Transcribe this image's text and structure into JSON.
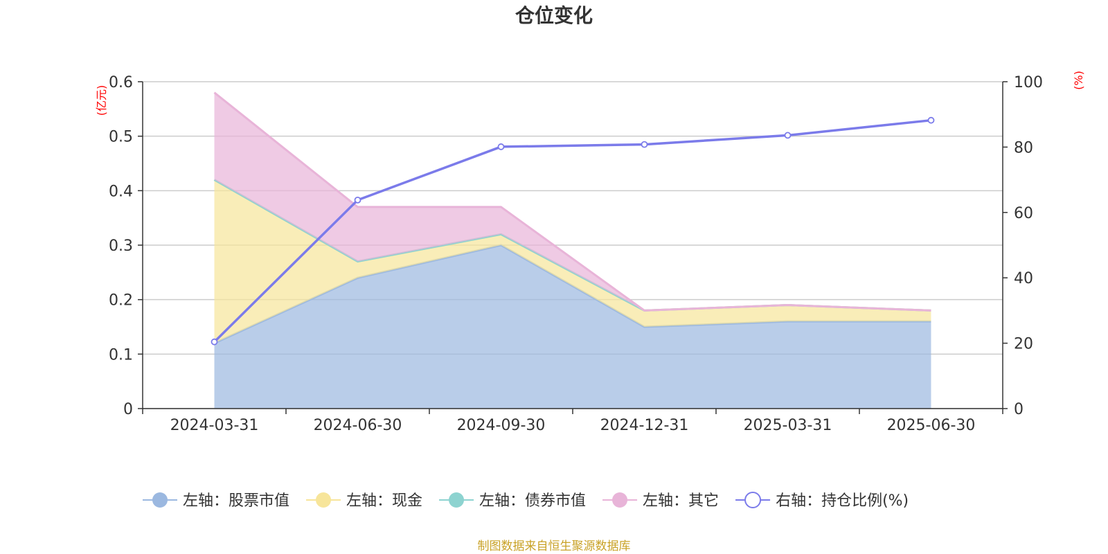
{
  "chart_data": {
    "type": "area",
    "title": "仓位变化",
    "x": [
      "2024-03-31",
      "2024-06-30",
      "2024-09-30",
      "2024-12-31",
      "2025-03-31",
      "2025-06-30"
    ],
    "left_axis": {
      "unit": "(亿元)",
      "ylim": [
        0,
        0.6
      ],
      "ticks": [
        "0",
        "0.1",
        "0.2",
        "0.3",
        "0.4",
        "0.5",
        "0.6"
      ]
    },
    "right_axis": {
      "unit": "(%)",
      "ylim": [
        0,
        100
      ],
      "ticks": [
        "0",
        "20",
        "40",
        "60",
        "80",
        "100"
      ]
    },
    "stacked_series": [
      {
        "name": "左轴：股票市值",
        "axis": "left",
        "color": "#9bb8e0",
        "values": [
          0.12,
          0.24,
          0.3,
          0.15,
          0.16,
          0.16
        ]
      },
      {
        "name": "左轴：现金",
        "axis": "left",
        "color": "#f7e59a",
        "values": [
          0.3,
          0.03,
          0.02,
          0.03,
          0.03,
          0.02
        ]
      },
      {
        "name": "左轴：债券市值",
        "axis": "left",
        "color": "#8dd3d0",
        "values": [
          0,
          0,
          0,
          0,
          0,
          0
        ]
      },
      {
        "name": "左轴：其它",
        "axis": "left",
        "color": "#e8b4d8",
        "values": [
          0.16,
          0.1,
          0.05,
          0.0,
          0.0,
          0.0
        ]
      }
    ],
    "line_series": {
      "name": "右轴：持仓比例(%)",
      "axis": "right",
      "color": "#7b7bea",
      "values": [
        20.4,
        63.8,
        80.1,
        80.8,
        83.6,
        88.2
      ]
    },
    "grid": true,
    "legend_position": "bottom"
  },
  "source_text": "制图数据来自恒生聚源数据库"
}
